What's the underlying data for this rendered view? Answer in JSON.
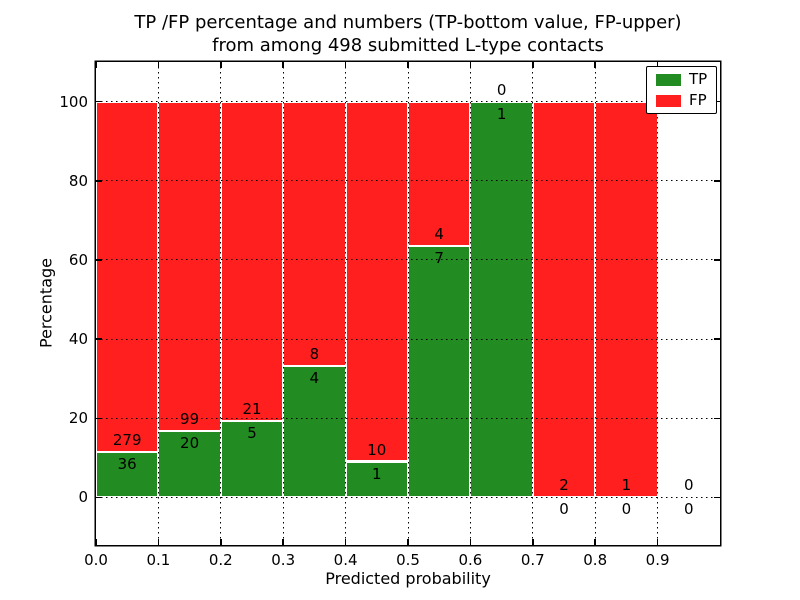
{
  "title": {
    "line1": "TP /FP percentage and numbers (TP-bottom value, FP-upper)",
    "line2": "from among 498 submitted L-type contacts"
  },
  "chart_data": {
    "type": "bar",
    "stacked": true,
    "title": "TP /FP percentage and numbers (TP-bottom value, FP-upper)\nfrom among 498 submitted L-type contacts",
    "xlabel": "Predicted probability",
    "ylabel": "Percentage",
    "total_contacts": 498,
    "bins": [
      "0.0-0.1",
      "0.1-0.2",
      "0.2-0.3",
      "0.3-0.4",
      "0.4-0.5",
      "0.5-0.6",
      "0.6-0.7",
      "0.7-0.8",
      "0.8-0.9",
      "0.9-1.0"
    ],
    "series": [
      {
        "name": "TP",
        "color": "#228B22",
        "counts": [
          36,
          20,
          5,
          4,
          1,
          7,
          1,
          0,
          0,
          0
        ]
      },
      {
        "name": "FP",
        "color": "#FF1F1F",
        "counts": [
          279,
          99,
          21,
          8,
          10,
          4,
          0,
          2,
          1,
          0
        ]
      }
    ],
    "bar_rule": "green segment height = TP/(TP+FP)*100, red stacked above to 100%; FP count printed above the segment boundary, TP count below it",
    "tp_percent_by_bin": [
      11.43,
      16.81,
      19.23,
      33.33,
      9.09,
      63.64,
      100.0,
      0.0,
      0.0,
      null
    ],
    "xticks": [
      "0.0",
      "0.1",
      "0.2",
      "0.3",
      "0.4",
      "0.5",
      "0.6",
      "0.7",
      "0.8",
      "0.9"
    ],
    "yticks": [
      0,
      20,
      40,
      60,
      80,
      100
    ],
    "xlim": [
      0.0,
      1.0
    ],
    "ylim": [
      -12,
      110
    ],
    "grid": "dotted black, drawn above bars",
    "legend": {
      "position": "upper right",
      "entries": [
        {
          "label": "TP",
          "color": "#228B22"
        },
        {
          "label": "FP",
          "color": "#FF1F1F"
        }
      ]
    }
  }
}
